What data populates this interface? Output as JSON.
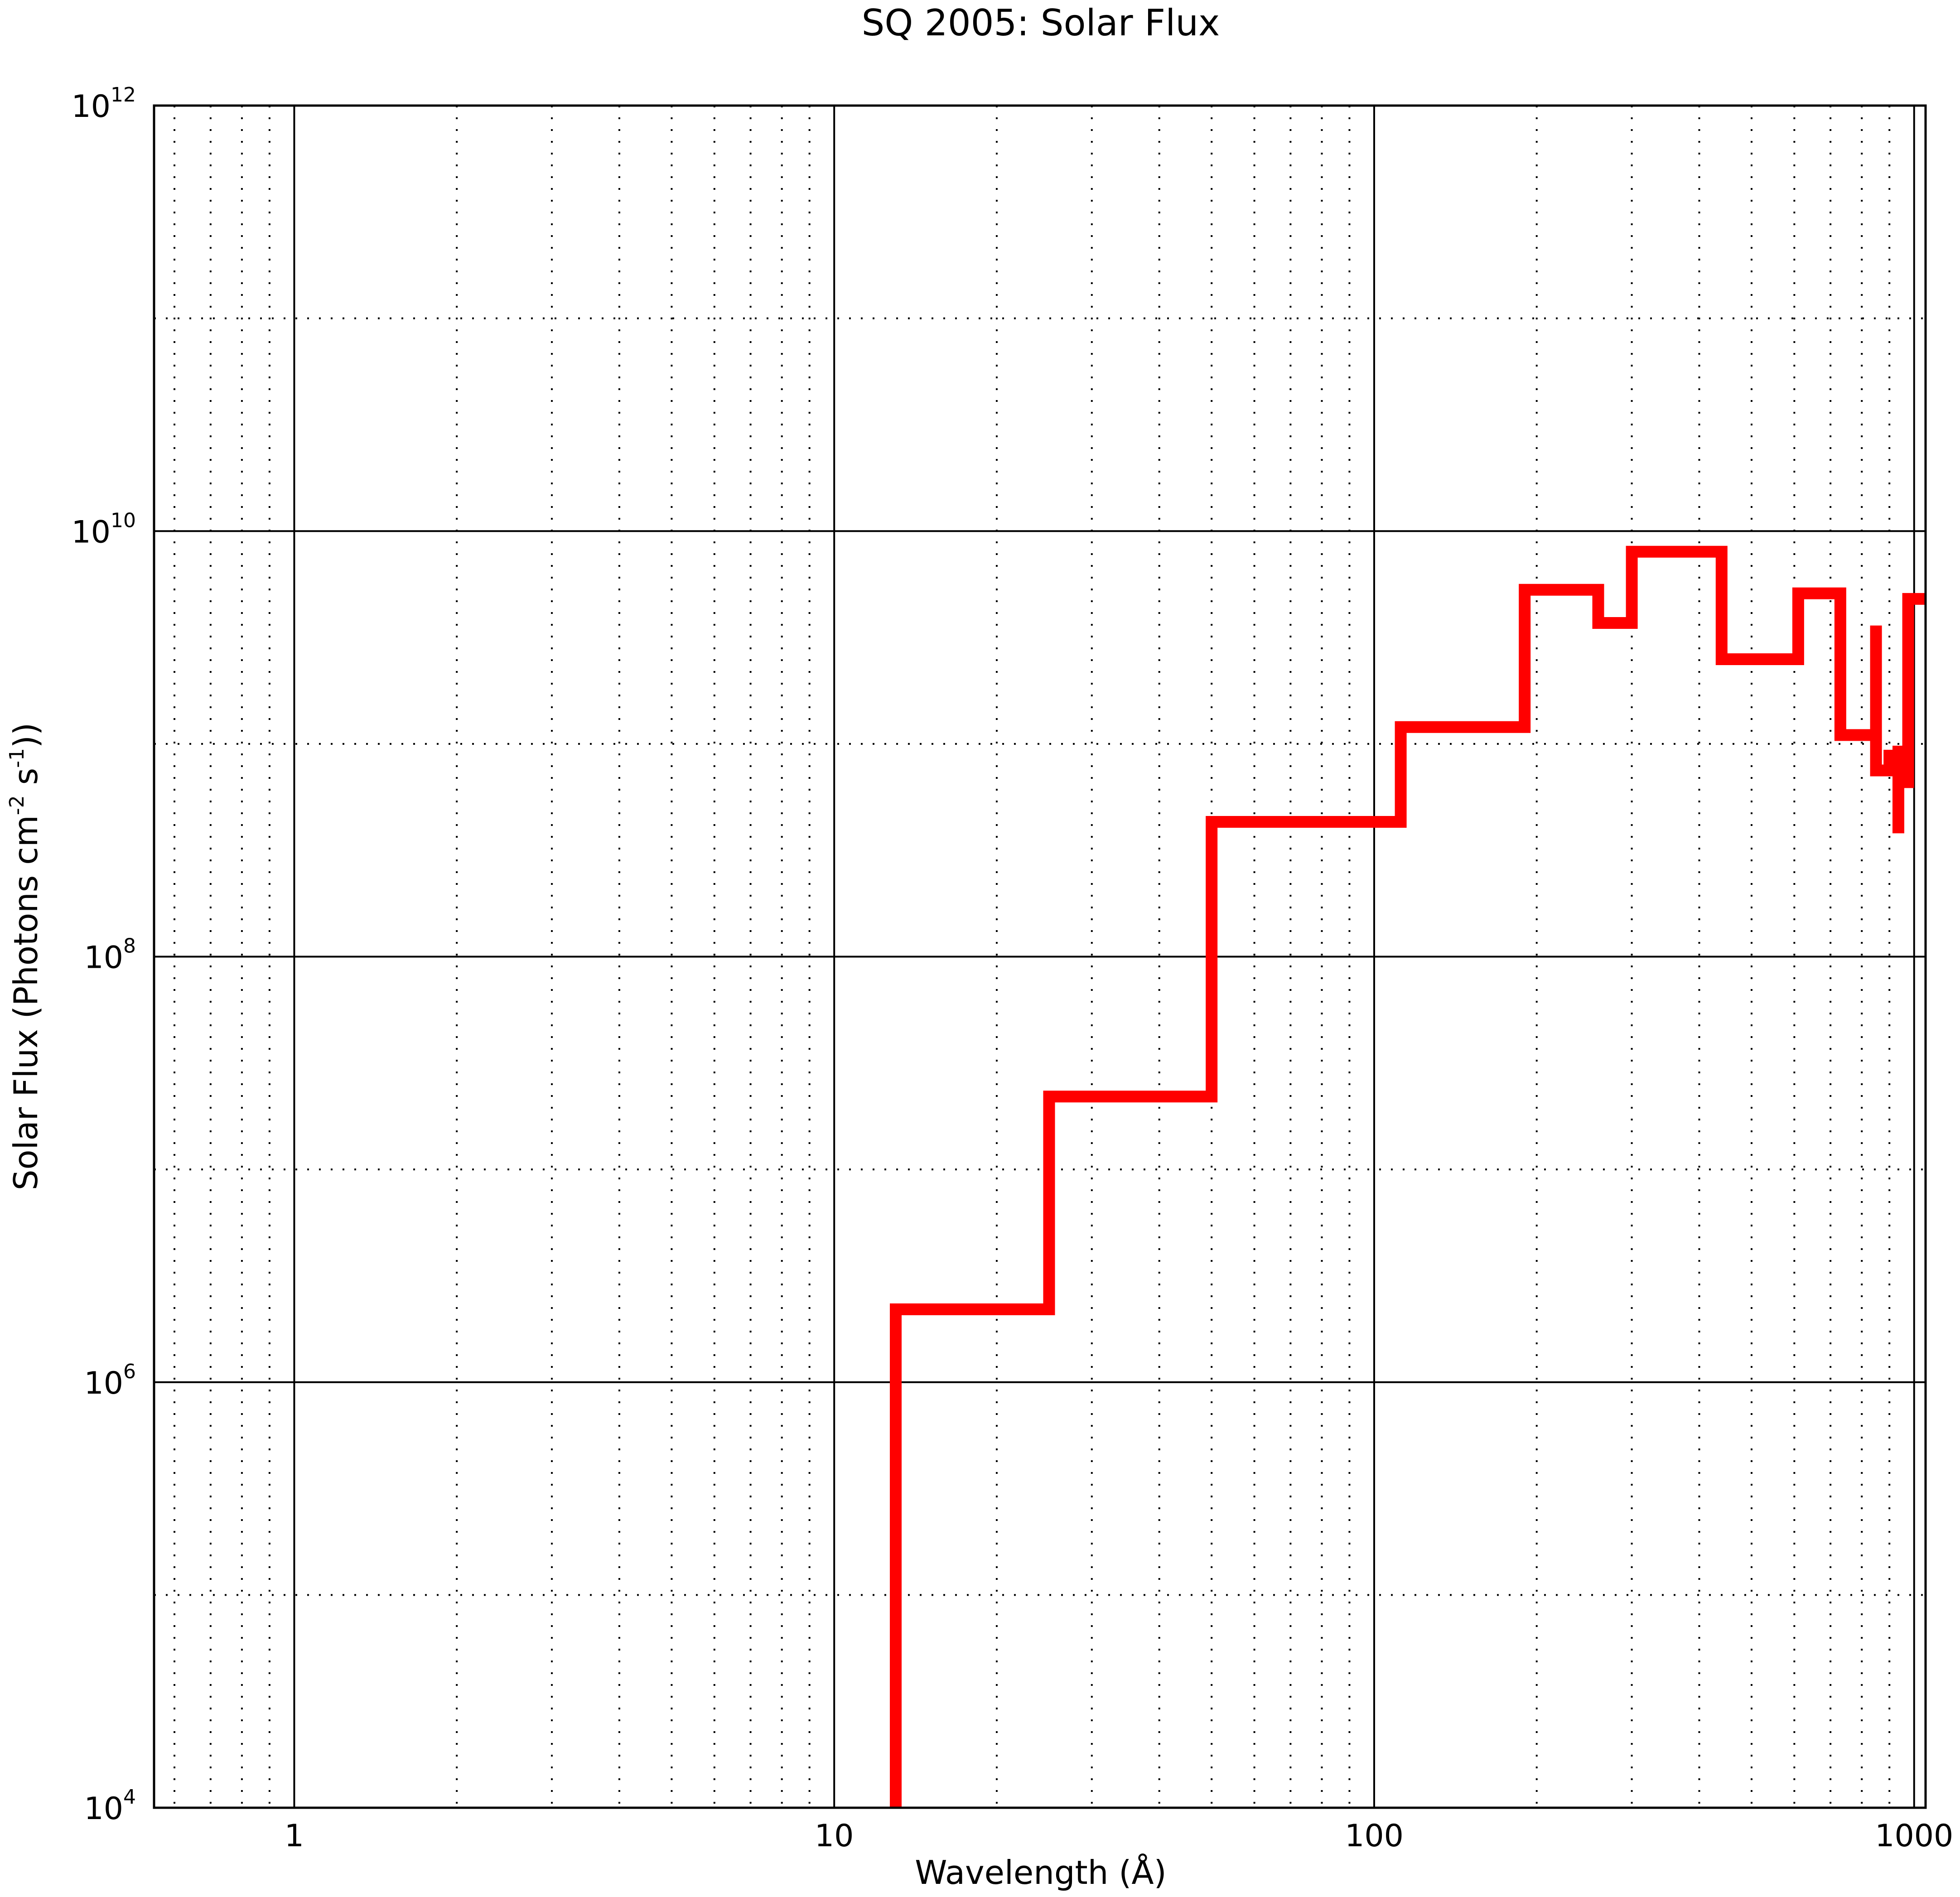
{
  "chart_data": {
    "type": "line",
    "title": "SQ 2005: Solar Flux",
    "xlabel": "Wavelength (Å)",
    "ylabel": {
      "prefix": "Solar Flux (Photons cm",
      "exp1": "-2",
      "mid": " s",
      "exp2": "-1",
      "suffix": "))"
    },
    "xscale": "log",
    "yscale": "log",
    "xlim": [
      0.55,
      1050
    ],
    "ylim": [
      10000,
      1000000000000
    ],
    "grid": true,
    "x_ticks": [
      {
        "value": 1,
        "label": "1"
      },
      {
        "value": 10,
        "label": "10"
      },
      {
        "value": 100,
        "label": "100"
      },
      {
        "value": 1000,
        "label": "1000"
      }
    ],
    "y_ticks": [
      {
        "value": 10000,
        "base": "10",
        "exp": "4"
      },
      {
        "value": 1000000,
        "base": "10",
        "exp": "6"
      },
      {
        "value": 100000000,
        "base": "10",
        "exp": "8"
      },
      {
        "value": 10000000000,
        "base": "10",
        "exp": "10"
      },
      {
        "value": 1000000000000,
        "base": "10",
        "exp": "12"
      }
    ],
    "series": [
      {
        "color": "#ff0000",
        "points": [
          [
            13,
            10000
          ],
          [
            13,
            2200000
          ],
          [
            25,
            2200000
          ],
          [
            25,
            22000000
          ],
          [
            50,
            22000000
          ],
          [
            50,
            430000000
          ],
          [
            112,
            430000000
          ],
          [
            112,
            1200000000
          ],
          [
            190,
            1200000000
          ],
          [
            190,
            5300000000
          ],
          [
            260,
            5300000000
          ],
          [
            260,
            3700000000
          ],
          [
            300,
            3700000000
          ],
          [
            300,
            8000000000
          ],
          [
            440,
            8000000000
          ],
          [
            440,
            2500000000
          ],
          [
            610,
            2500000000
          ],
          [
            610,
            5100000000
          ],
          [
            730,
            5100000000
          ],
          [
            730,
            1100000000
          ],
          [
            850,
            1100000000
          ],
          [
            850,
            3600000000
          ],
          [
            850,
            750000000
          ],
          [
            900,
            750000000
          ],
          [
            900,
            880000000
          ],
          [
            935,
            880000000
          ],
          [
            935,
            380000000
          ],
          [
            935,
            920000000
          ],
          [
            975,
            920000000
          ],
          [
            975,
            620000000
          ],
          [
            975,
            4800000000
          ],
          [
            1050,
            4800000000
          ]
        ]
      }
    ]
  }
}
